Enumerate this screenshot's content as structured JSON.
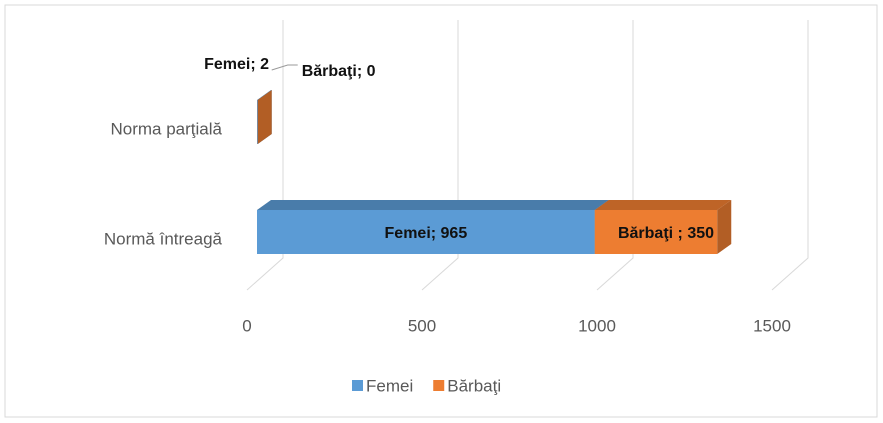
{
  "chart_data": {
    "type": "bar3d-stacked-horizontal",
    "categories": [
      "Norma parţială",
      "Normă întreagă"
    ],
    "series": [
      {
        "name": "Femei",
        "color": "#5b9bd5",
        "values": [
          2,
          965
        ],
        "value_labels": [
          "Femei; 2",
          "Femei; 965"
        ]
      },
      {
        "name": "Bărbaţi",
        "color": "#ed7d31",
        "values": [
          0,
          350
        ],
        "value_labels": [
          "Bărbaţi; 0",
          "Bărbaţi ; 350"
        ]
      }
    ],
    "xlim": [
      0,
      1500
    ],
    "xticks": [
      0,
      500,
      1000,
      1500
    ],
    "grid": true,
    "legend": "bottom"
  }
}
